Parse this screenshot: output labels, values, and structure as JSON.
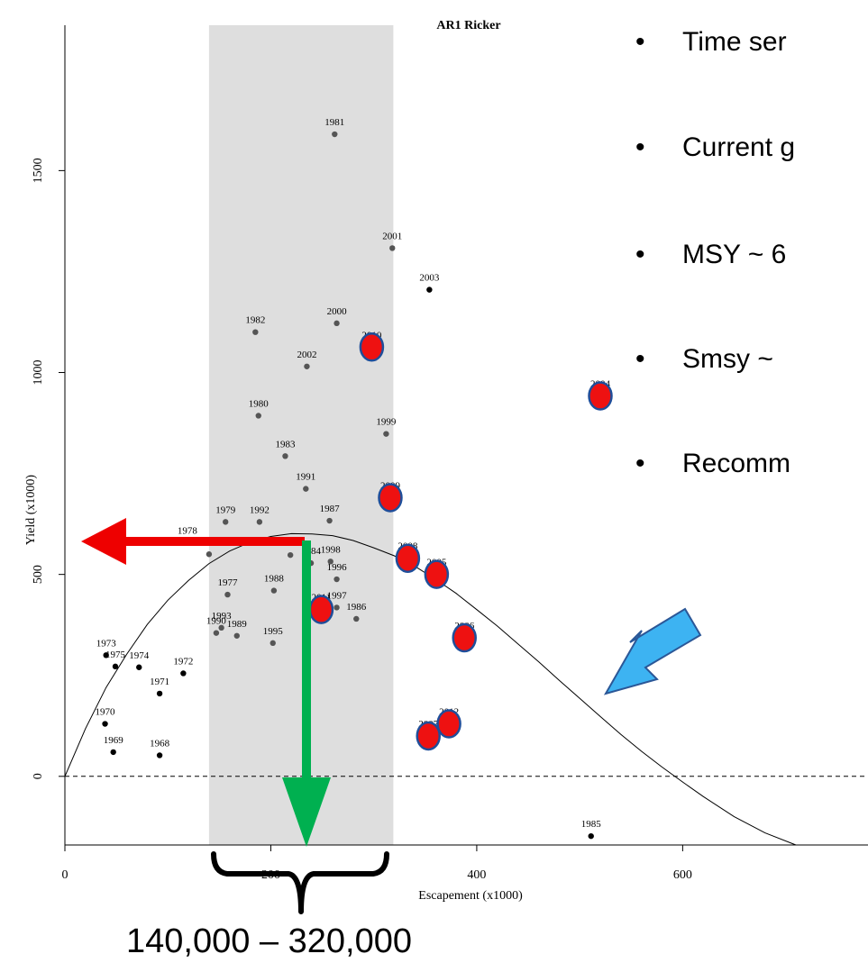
{
  "bullets": [
    "Time ser",
    "Current g",
    "MSY ~ 6",
    "Smsy ~",
    "Recomm"
  ],
  "range_label": "140,000 – 320,000",
  "chart_data": {
    "type": "scatter",
    "title": "AR1 Ricker",
    "xlabel": "Escapement (x1000)",
    "ylabel": "Yield (x1000)",
    "xlim": [
      0,
      780
    ],
    "ylim": [
      -170,
      1860
    ],
    "xticks": [
      0,
      200,
      400,
      600
    ],
    "yticks": [
      0,
      500,
      1000,
      1500
    ],
    "grid": false,
    "legend": "none",
    "zero_line": "dashed",
    "shaded_range": [
      140,
      319
    ],
    "colors": {
      "point": "#000000",
      "point_gray": "#555555",
      "highlight_fill": "#ee1111",
      "highlight_stroke": "#1f4e9a",
      "shade": "#dedede",
      "red_arrow": "#ee0000",
      "green_arrow": "#00b050",
      "blue_arrow": "#3db3f2",
      "blue_arrow_stroke": "#2b5797"
    },
    "ricker_curve": {
      "description": "fitted Ricker yield curve",
      "points": [
        [
          0,
          0
        ],
        [
          20,
          118
        ],
        [
          40,
          220
        ],
        [
          60,
          302
        ],
        [
          80,
          376
        ],
        [
          100,
          436
        ],
        [
          120,
          485
        ],
        [
          140,
          527
        ],
        [
          160,
          558
        ],
        [
          180,
          580
        ],
        [
          200,
          594
        ],
        [
          220,
          601
        ],
        [
          240,
          600
        ],
        [
          260,
          596
        ],
        [
          280,
          584
        ],
        [
          300,
          566
        ],
        [
          320,
          546
        ],
        [
          340,
          520
        ],
        [
          360,
          488
        ],
        [
          380,
          453
        ],
        [
          400,
          413
        ],
        [
          420,
          372
        ],
        [
          440,
          328
        ],
        [
          460,
          284
        ],
        [
          480,
          238
        ],
        [
          500,
          193
        ],
        [
          520,
          148
        ],
        [
          540,
          104
        ],
        [
          560,
          62
        ],
        [
          580,
          23
        ],
        [
          600,
          -14
        ],
        [
          620,
          -50
        ],
        [
          650,
          -100
        ],
        [
          680,
          -140
        ],
        [
          710,
          -170
        ]
      ]
    },
    "points": [
      {
        "label": "1968",
        "x": 92,
        "y": 52,
        "shade": "black"
      },
      {
        "label": "1969",
        "x": 47,
        "y": 60,
        "shade": "black"
      },
      {
        "label": "1970",
        "x": 39,
        "y": 130,
        "shade": "black"
      },
      {
        "label": "1971",
        "x": 92,
        "y": 205,
        "shade": "black"
      },
      {
        "label": "1972",
        "x": 115,
        "y": 255,
        "shade": "black"
      },
      {
        "label": "1973",
        "x": 40,
        "y": 300,
        "shade": "black"
      },
      {
        "label": "1974",
        "x": 72,
        "y": 270,
        "shade": "black"
      },
      {
        "label": "1975",
        "x": 49,
        "y": 272,
        "shade": "black"
      },
      {
        "label": "1976",
        "x": 140,
        "y": 550,
        "shade": "gray"
      },
      {
        "label": "1977",
        "x": 158,
        "y": 450,
        "shade": "gray"
      },
      {
        "label": "1978",
        "x": 119,
        "y": 578,
        "shade": "black"
      },
      {
        "label": "1979",
        "x": 156,
        "y": 630,
        "shade": "gray"
      },
      {
        "label": "1980",
        "x": 188,
        "y": 893,
        "shade": "gray"
      },
      {
        "label": "1981",
        "x": 262,
        "y": 1590,
        "shade": "gray"
      },
      {
        "label": "1982",
        "x": 185,
        "y": 1100,
        "shade": "gray"
      },
      {
        "label": "1983",
        "x": 214,
        "y": 793,
        "shade": "gray"
      },
      {
        "label": "1984",
        "x": 239,
        "y": 528,
        "shade": "gray"
      },
      {
        "label": "1985",
        "x": 511,
        "y": -148,
        "shade": "black"
      },
      {
        "label": "1986",
        "x": 283,
        "y": 390,
        "shade": "gray"
      },
      {
        "label": "1987",
        "x": 257,
        "y": 633,
        "shade": "gray"
      },
      {
        "label": "1988",
        "x": 203,
        "y": 460,
        "shade": "gray"
      },
      {
        "label": "1989",
        "x": 167,
        "y": 348,
        "shade": "gray"
      },
      {
        "label": "1990",
        "x": 147,
        "y": 355,
        "shade": "gray"
      },
      {
        "label": "1991",
        "x": 234,
        "y": 712,
        "shade": "gray"
      },
      {
        "label": "1992",
        "x": 189,
        "y": 630,
        "shade": "gray"
      },
      {
        "label": "1993",
        "x": 152,
        "y": 368,
        "shade": "gray"
      },
      {
        "label": "1994",
        "x": 219,
        "y": 548,
        "shade": "gray"
      },
      {
        "label": "1995",
        "x": 202,
        "y": 330,
        "shade": "gray"
      },
      {
        "label": "1996",
        "x": 264,
        "y": 488,
        "shade": "gray"
      },
      {
        "label": "1997",
        "x": 264,
        "y": 418,
        "shade": "gray"
      },
      {
        "label": "1998",
        "x": 258,
        "y": 532,
        "shade": "gray"
      },
      {
        "label": "1999",
        "x": 312,
        "y": 848,
        "shade": "gray"
      },
      {
        "label": "2000",
        "x": 264,
        "y": 1122,
        "shade": "gray"
      },
      {
        "label": "2001",
        "x": 318,
        "y": 1308,
        "shade": "gray"
      },
      {
        "label": "2002",
        "x": 235,
        "y": 1015,
        "shade": "gray"
      },
      {
        "label": "2003",
        "x": 354,
        "y": 1205,
        "shade": "black"
      },
      {
        "label": "2004",
        "x": 520,
        "y": 942,
        "shade": "black",
        "highlight": true
      },
      {
        "label": "2005",
        "x": 361,
        "y": 500,
        "shade": "black",
        "highlight": true
      },
      {
        "label": "2006",
        "x": 388,
        "y": 343,
        "shade": "black",
        "highlight": true
      },
      {
        "label": "2007",
        "x": 353,
        "y": 100,
        "shade": "black",
        "highlight": true
      },
      {
        "label": "2008",
        "x": 333,
        "y": 540,
        "shade": "black",
        "highlight": true
      },
      {
        "label": "2009",
        "x": 316,
        "y": 690,
        "shade": "black",
        "highlight": true
      },
      {
        "label": "2010",
        "x": 298,
        "y": 1063,
        "shade": "black",
        "highlight": true
      },
      {
        "label": "2011",
        "x": 249,
        "y": 413,
        "shade": "black",
        "highlight": true
      },
      {
        "label": "2012",
        "x": 373,
        "y": 130,
        "shade": "black",
        "highlight": true
      }
    ]
  }
}
